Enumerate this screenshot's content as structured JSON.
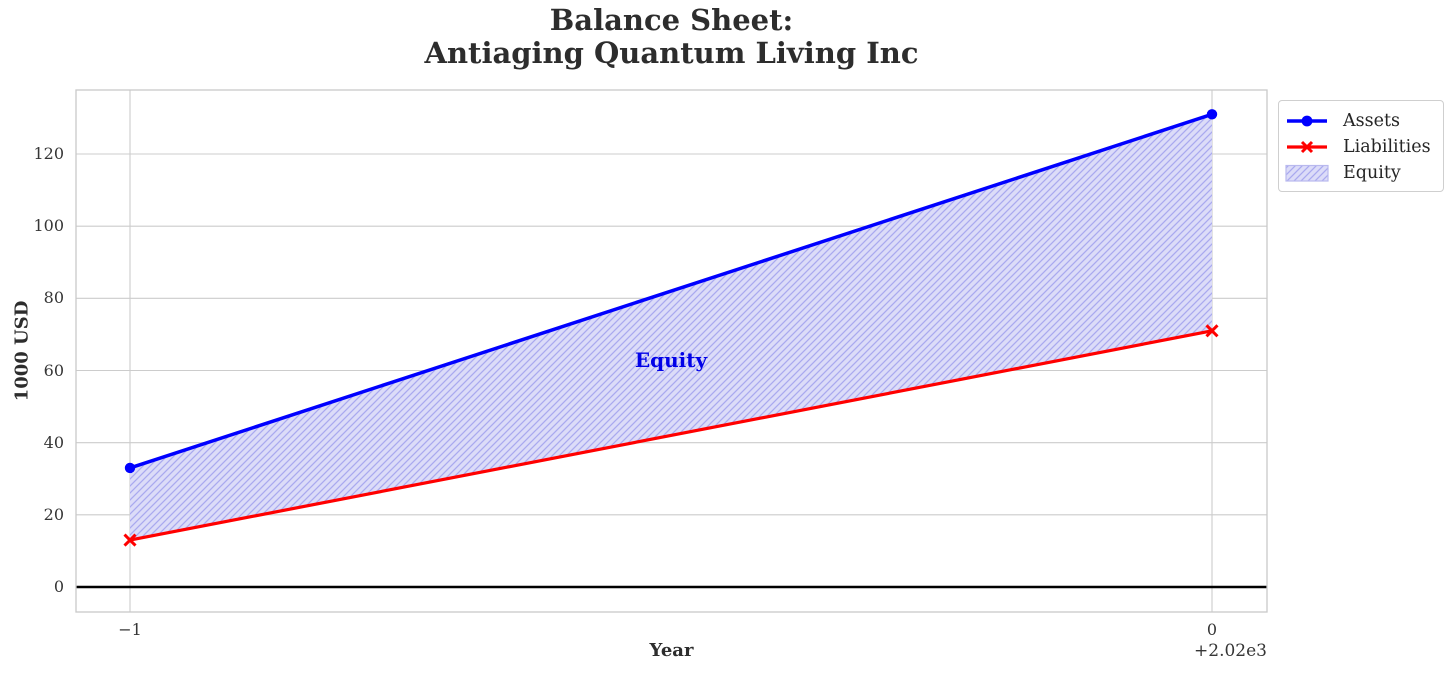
{
  "title": {
    "line1": "Balance Sheet:",
    "line2": "Antiaging Quantum Living Inc"
  },
  "axes": {
    "xlabel": "Year",
    "ylabel": "1000 USD",
    "x_offset_text": "+2.02e3",
    "x_tick_labels": [
      "−1",
      "0"
    ],
    "y_tick_labels": [
      "0",
      "20",
      "40",
      "60",
      "80",
      "100",
      "120"
    ]
  },
  "legend": {
    "items": [
      {
        "label": "Assets",
        "type": "line-circle",
        "color": "#0000ff"
      },
      {
        "label": "Liabilities",
        "type": "line-x",
        "color": "#ff0000"
      },
      {
        "label": "Equity",
        "type": "hatched-patch",
        "color": "#dcdcf8"
      }
    ]
  },
  "annotation": {
    "text": "Equity",
    "color": "#0202e8"
  },
  "chart_data": {
    "type": "line",
    "title": "Balance Sheet:\nAntiaging Quantum Living Inc",
    "xlabel": "Year",
    "ylabel": "1000 USD",
    "x": [
      2019,
      2020
    ],
    "x_offset_text": "+2.02e3",
    "x_tick_labels": [
      "−1",
      "0"
    ],
    "yticks": [
      0,
      20,
      40,
      60,
      80,
      100,
      120
    ],
    "ylim": [
      -7,
      138
    ],
    "xlim_offset_units": [
      -1.05,
      0.05
    ],
    "grid": true,
    "series": [
      {
        "name": "Assets",
        "values": [
          33,
          131
        ],
        "color": "#0000ff",
        "marker": "o",
        "linewidth": 3.5
      },
      {
        "name": "Liabilities",
        "values": [
          13,
          71
        ],
        "color": "#ff0000",
        "marker": "x",
        "linewidth": 3.2
      }
    ],
    "fill_between": {
      "label": "Equity",
      "upper_series": "Assets",
      "lower_series": "Liabilities",
      "values": [
        20,
        60
      ],
      "facecolor": "#dcdcf8",
      "hatch": "///",
      "hatch_color": "#a9a9ef",
      "edge_color": "#b9b9ee"
    },
    "zero_line": {
      "y": 0,
      "color": "#000000"
    },
    "legend_entries": [
      "Assets",
      "Liabilities",
      "Equity"
    ],
    "legend_position": "upper right, outside axes",
    "grid_color": "#cccccc",
    "frame_color": "#c9c9c9"
  }
}
